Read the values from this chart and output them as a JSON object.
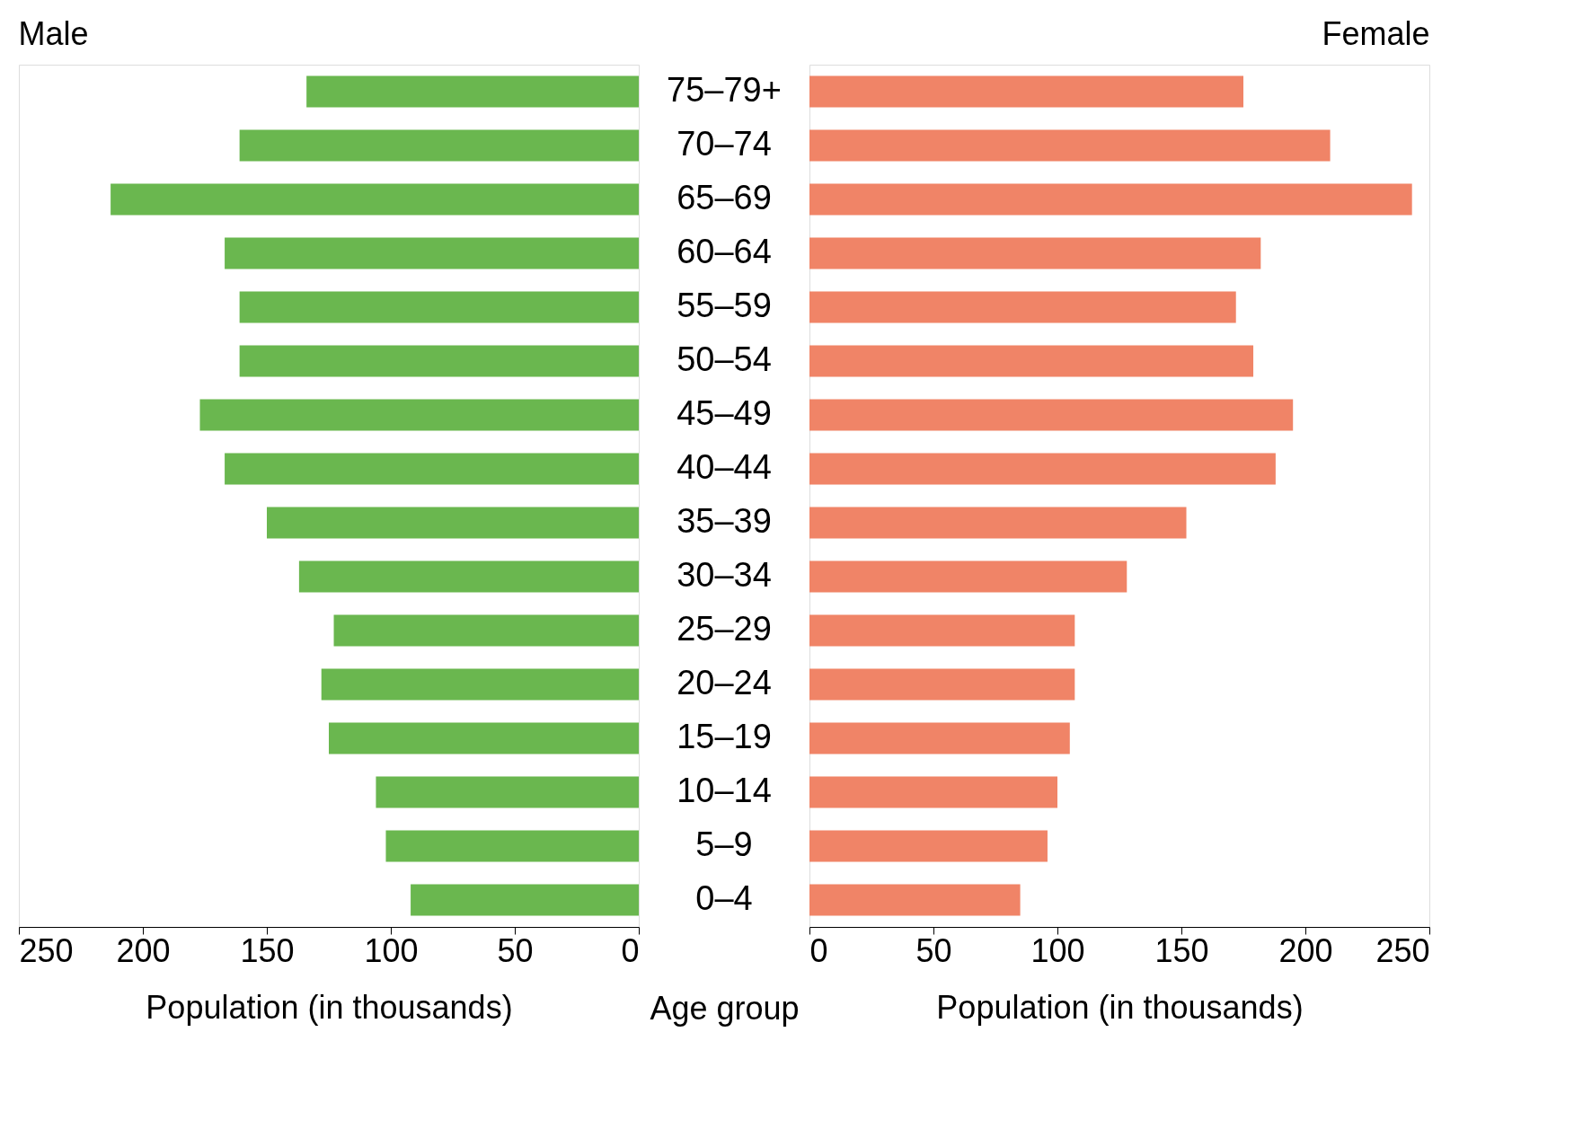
{
  "chart_data": [
    {
      "type": "bar",
      "orientation": "horizontal",
      "title": "Male",
      "xlabel": "Population (in thousands)",
      "ylabel": "Age group",
      "color": "#6ab74f",
      "categories": [
        "75–79+",
        "70–74",
        "65–69",
        "60–64",
        "55–59",
        "50–54",
        "45–49",
        "40–44",
        "35–39",
        "30–34",
        "25–29",
        "20–24",
        "15–19",
        "10–14",
        "5–9",
        "0–4"
      ],
      "values": [
        134,
        161,
        213,
        167,
        161,
        161,
        177,
        167,
        150,
        137,
        123,
        128,
        125,
        106,
        102,
        92
      ],
      "xlim": [
        250,
        0
      ],
      "xticks": [
        250,
        200,
        150,
        100,
        50,
        0
      ]
    },
    {
      "type": "bar",
      "orientation": "horizontal",
      "title": "Female",
      "xlabel": "Population (in thousands)",
      "color": "#f08467",
      "tick_labels": "x",
      "values": [
        175,
        210,
        243,
        182,
        172,
        179,
        195,
        188,
        152,
        128,
        107,
        107,
        105,
        100,
        96,
        85
      ],
      "xlim": [
        0,
        250
      ],
      "xticks": [
        0,
        50,
        100,
        150,
        200,
        250
      ]
    }
  ]
}
